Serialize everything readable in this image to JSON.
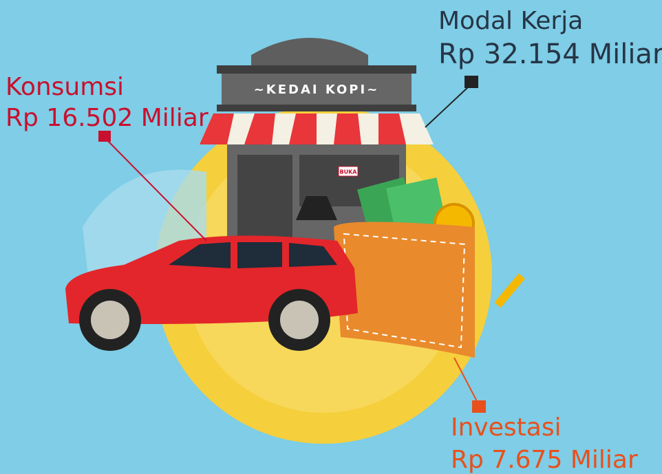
{
  "labels": [
    {
      "title": "Konsumsi",
      "amount": "Rp 16.502 Miliar"
    },
    {
      "title": "Modal Kerja",
      "amount": "Rp 32.154 Miliar"
    },
    {
      "title": "Investasi",
      "amount": "Rp 7.675 Miliar"
    }
  ],
  "shop": {
    "sign": "~KEDAI KOPI~",
    "door_sign": "BUKA"
  }
}
